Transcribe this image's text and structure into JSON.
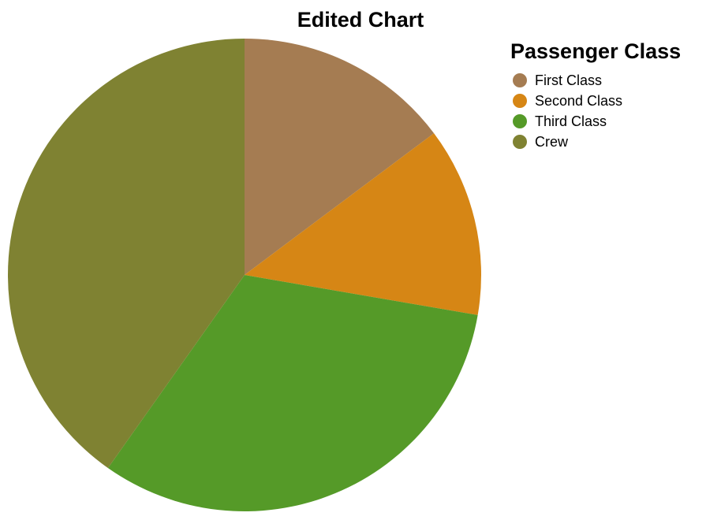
{
  "chart_data": {
    "type": "pie",
    "title": "Edited Chart",
    "legend_title": "Passenger Class",
    "legend_position": "top-right",
    "categories": [
      "First Class",
      "Second Class",
      "Third Class",
      "Crew"
    ],
    "values": [
      325,
      285,
      706,
      885
    ],
    "colors": [
      "#a57c52",
      "#d68615",
      "#559a28",
      "#7f8232"
    ]
  }
}
